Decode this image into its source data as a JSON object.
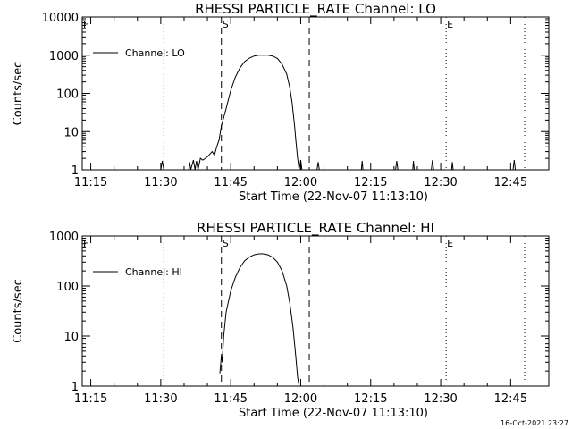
{
  "footer_timestamp": "16-Oct-2021 23:27",
  "chart_data": [
    {
      "type": "line",
      "title": "RHESSI PARTICLE_RATE Channel: LO",
      "xlabel": "Start Time (22-Nov-07 11:13:10)",
      "ylabel": "Counts/sec",
      "yscale": "log",
      "ylim": [
        1,
        10000
      ],
      "xlim": [
        "11:13:10",
        "12:53:10"
      ],
      "x_ticks": [
        "11:15",
        "11:30",
        "11:45",
        "12:00",
        "12:15",
        "12:30",
        "12:45"
      ],
      "y_ticks": [
        "1",
        "10",
        "100",
        "1000",
        "10000"
      ],
      "legend": {
        "position": "top-left",
        "entries": [
          "Channel: LO"
        ]
      },
      "markers": [
        {
          "label": "F",
          "time": "11:13:10",
          "style": "dotted"
        },
        {
          "label": "",
          "time": "11:30:40",
          "style": "dotted"
        },
        {
          "label": "S",
          "time": "11:43:00",
          "style": "dashed"
        },
        {
          "label": "",
          "time": "12:01:50",
          "style": "dashed"
        },
        {
          "label": "E",
          "time": "12:31:10",
          "style": "dotted"
        },
        {
          "label": "",
          "time": "12:48:00",
          "style": "dotted"
        }
      ],
      "series": [
        {
          "name": "Channel: LO",
          "points": [
            [
              "11:13:10",
              1
            ],
            [
              "11:30:00",
              1
            ],
            [
              "11:30:20",
              1.7
            ],
            [
              "11:30:40",
              1
            ],
            [
              "11:36:00",
              1
            ],
            [
              "11:36:10",
              1.6
            ],
            [
              "11:36:25",
              1
            ],
            [
              "11:37:00",
              1.8
            ],
            [
              "11:37:20",
              1
            ],
            [
              "11:37:40",
              1.7
            ],
            [
              "11:38:00",
              1
            ],
            [
              "11:38:30",
              2
            ],
            [
              "11:39:00",
              1.8
            ],
            [
              "11:40:00",
              2.2
            ],
            [
              "11:41:00",
              3
            ],
            [
              "11:41:30",
              2.4
            ],
            [
              "11:42:00",
              4
            ],
            [
              "11:42:30",
              6
            ],
            [
              "11:43:00",
              14
            ],
            [
              "11:44:00",
              40
            ],
            [
              "11:45:00",
              120
            ],
            [
              "11:46:00",
              270
            ],
            [
              "11:47:00",
              470
            ],
            [
              "11:48:00",
              680
            ],
            [
              "11:49:00",
              840
            ],
            [
              "11:50:00",
              950
            ],
            [
              "11:51:00",
              1000
            ],
            [
              "11:52:00",
              1010
            ],
            [
              "11:53:00",
              1000
            ],
            [
              "11:54:00",
              950
            ],
            [
              "11:55:00",
              820
            ],
            [
              "11:56:00",
              580
            ],
            [
              "11:57:00",
              320
            ],
            [
              "11:57:40",
              140
            ],
            [
              "11:58:10",
              55
            ],
            [
              "11:58:40",
              15
            ],
            [
              "11:59:00",
              5
            ],
            [
              "11:59:20",
              2
            ],
            [
              "11:59:40",
              1
            ],
            [
              "12:00:00",
              1.8
            ],
            [
              "12:00:15",
              1
            ],
            [
              "12:03:30",
              1
            ],
            [
              "12:03:45",
              1.6
            ],
            [
              "12:04:00",
              1
            ],
            [
              "12:13:00",
              1
            ],
            [
              "12:13:10",
              1.7
            ],
            [
              "12:13:20",
              1
            ],
            [
              "12:20:20",
              1
            ],
            [
              "12:20:35",
              1.7
            ],
            [
              "12:20:50",
              1
            ],
            [
              "12:24:00",
              1
            ],
            [
              "12:24:10",
              1.7
            ],
            [
              "12:24:20",
              1
            ],
            [
              "12:28:00",
              1
            ],
            [
              "12:28:15",
              1.8
            ],
            [
              "12:28:30",
              1
            ],
            [
              "12:32:20",
              1
            ],
            [
              "12:32:30",
              1.6
            ],
            [
              "12:32:40",
              1
            ],
            [
              "12:45:30",
              1
            ],
            [
              "12:45:45",
              1.8
            ],
            [
              "12:46:00",
              1
            ],
            [
              "12:53:10",
              1
            ]
          ]
        }
      ]
    },
    {
      "type": "line",
      "title": "RHESSI PARTICLE_RATE Channel: HI",
      "xlabel": "Start Time (22-Nov-07 11:13:10)",
      "ylabel": "Counts/sec",
      "yscale": "log",
      "ylim": [
        1,
        1000
      ],
      "xlim": [
        "11:13:10",
        "12:53:10"
      ],
      "x_ticks": [
        "11:15",
        "11:30",
        "11:45",
        "12:00",
        "12:15",
        "12:30",
        "12:45"
      ],
      "y_ticks": [
        "1",
        "10",
        "100",
        "1000"
      ],
      "legend": {
        "position": "top-left",
        "entries": [
          "Channel: HI"
        ]
      },
      "markers": [
        {
          "label": "F",
          "time": "11:13:10",
          "style": "dotted"
        },
        {
          "label": "",
          "time": "11:30:40",
          "style": "dotted"
        },
        {
          "label": "S",
          "time": "11:43:00",
          "style": "dashed"
        },
        {
          "label": "",
          "time": "12:01:50",
          "style": "dashed"
        },
        {
          "label": "E",
          "time": "12:31:10",
          "style": "dotted"
        },
        {
          "label": "",
          "time": "12:48:00",
          "style": "dotted"
        }
      ],
      "series": [
        {
          "name": "Channel: HI",
          "points": [
            [
              "11:42:40",
              1.8
            ],
            [
              "11:43:00",
              4
            ],
            [
              "11:43:10",
              3
            ],
            [
              "11:43:30",
              10
            ],
            [
              "11:44:00",
              30
            ],
            [
              "11:45:00",
              80
            ],
            [
              "11:46:00",
              150
            ],
            [
              "11:47:00",
              235
            ],
            [
              "11:48:00",
              320
            ],
            [
              "11:49:00",
              380
            ],
            [
              "11:50:00",
              420
            ],
            [
              "11:51:00",
              440
            ],
            [
              "11:52:00",
              440
            ],
            [
              "11:53:00",
              420
            ],
            [
              "11:54:00",
              375
            ],
            [
              "11:55:00",
              300
            ],
            [
              "11:56:00",
              200
            ],
            [
              "11:57:00",
              100
            ],
            [
              "11:57:40",
              45
            ],
            [
              "11:58:20",
              15
            ],
            [
              "11:58:50",
              5
            ],
            [
              "11:59:20",
              1.5
            ],
            [
              "11:59:40",
              1
            ]
          ]
        }
      ]
    }
  ]
}
